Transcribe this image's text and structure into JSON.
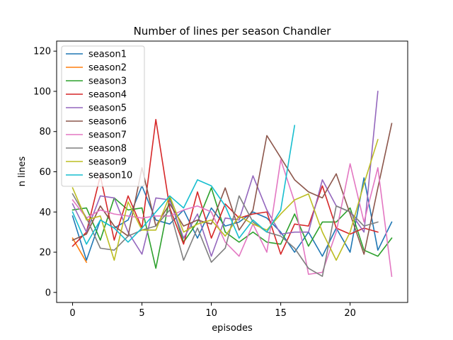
{
  "chart_data": {
    "type": "line",
    "title": "Number of lines per season Chandler",
    "xlabel": "episodes",
    "ylabel": "n lines",
    "xlim": [
      -1.15,
      24.15
    ],
    "ylim": [
      -5,
      125
    ],
    "x_ticks": [
      0,
      5,
      10,
      15,
      20
    ],
    "y_ticks": [
      0,
      20,
      40,
      60,
      80,
      100,
      120
    ],
    "grid": false,
    "legend_position": "top-left",
    "series": [
      {
        "name": "season1",
        "color": "#1f77b4",
        "x": [
          0,
          1,
          2,
          3,
          4,
          5,
          6,
          7,
          8,
          9,
          10,
          11,
          12,
          13,
          14,
          15,
          16,
          17,
          18,
          19,
          20,
          21,
          22,
          23
        ],
        "y": [
          38,
          16,
          36,
          32,
          36,
          53,
          36,
          34,
          41,
          27,
          42,
          33,
          35,
          40,
          37,
          30,
          20,
          30,
          18,
          32,
          20,
          57,
          21,
          35
        ]
      },
      {
        "name": "season2",
        "color": "#ff7f0e",
        "x": [
          0,
          1
        ],
        "y": [
          27,
          15
        ]
      },
      {
        "name": "season3",
        "color": "#2ca02c",
        "x": [
          0,
          1,
          2,
          3,
          4,
          5,
          6,
          7,
          8,
          9,
          10,
          11,
          12,
          13,
          14,
          15,
          16,
          17,
          18,
          19,
          20,
          21,
          22,
          23
        ],
        "y": [
          41,
          42,
          26,
          47,
          41,
          42,
          12,
          47,
          25,
          35,
          52,
          30,
          25,
          30,
          25,
          24,
          39,
          23,
          35,
          35,
          42,
          21,
          18,
          27
        ]
      },
      {
        "name": "season4",
        "color": "#d62728",
        "x": [
          0,
          1,
          2,
          3,
          4,
          5,
          6,
          7,
          8,
          9,
          10,
          11,
          12,
          13,
          14,
          15,
          16,
          17,
          18,
          19,
          20,
          21,
          22
        ],
        "y": [
          23,
          30,
          58,
          26,
          48,
          32,
          86,
          42,
          24,
          50,
          27,
          44,
          37,
          39,
          40,
          19,
          34,
          33,
          53,
          32,
          29,
          32,
          30
        ]
      },
      {
        "name": "season5",
        "color": "#9467bd",
        "x": [
          0,
          1,
          2,
          3,
          4,
          5,
          6,
          7,
          8,
          9,
          10,
          11,
          12,
          13,
          14,
          15,
          16,
          17,
          18,
          19,
          20,
          21,
          22
        ],
        "y": [
          44,
          30,
          48,
          47,
          30,
          19,
          47,
          46,
          27,
          39,
          18,
          37,
          36,
          58,
          41,
          29,
          30,
          30,
          56,
          43,
          40,
          30,
          100
        ]
      },
      {
        "name": "season6",
        "color": "#8c564b",
        "x": [
          0,
          1,
          2,
          3,
          4,
          5,
          6,
          7,
          8,
          9,
          10,
          11,
          12,
          13,
          14,
          16,
          17,
          18,
          19,
          20,
          21,
          22,
          23
        ],
        "y": [
          26,
          29,
          43,
          33,
          28,
          62,
          33,
          44,
          33,
          36,
          34,
          52,
          31,
          41,
          78,
          56,
          50,
          47,
          59,
          39,
          19,
          52,
          84
        ]
      },
      {
        "name": "season7",
        "color": "#e377c2",
        "x": [
          0,
          1,
          2,
          3,
          4,
          5,
          6,
          7,
          8,
          9,
          10,
          11,
          12,
          13,
          14,
          15,
          16,
          17,
          18,
          19,
          20,
          21,
          22,
          23
        ],
        "y": [
          46,
          37,
          41,
          39,
          38,
          37,
          38,
          38,
          41,
          43,
          40,
          25,
          18,
          34,
          20,
          66,
          45,
          9,
          10,
          30,
          64,
          35,
          62,
          8
        ]
      },
      {
        "name": "season8",
        "color": "#7f7f7f",
        "x": [
          0,
          1,
          2,
          3,
          4,
          5,
          6,
          7,
          8,
          9,
          10,
          11,
          12,
          13,
          14,
          15,
          16,
          17,
          18,
          19,
          20,
          21,
          22
        ],
        "y": [
          49,
          37,
          22,
          21,
          28,
          31,
          33,
          41,
          16,
          32,
          15,
          22,
          48,
          35,
          30,
          28,
          22,
          12,
          8,
          43,
          40,
          33,
          35
        ]
      },
      {
        "name": "season9",
        "color": "#bcbd22",
        "x": [
          0,
          1,
          2,
          3,
          4,
          5,
          6,
          7,
          8,
          9,
          10,
          11,
          12,
          13,
          14,
          15,
          16,
          17,
          18,
          19,
          20,
          21,
          22
        ],
        "y": [
          52,
          36,
          38,
          16,
          45,
          31,
          31,
          48,
          30,
          34,
          36,
          28,
          38,
          34,
          31,
          39,
          46,
          49,
          30,
          16,
          30,
          54,
          76
        ]
      },
      {
        "name": "season10",
        "color": "#17becf",
        "x": [
          0,
          1,
          2,
          3,
          4,
          5,
          6,
          7,
          8,
          9,
          10,
          11,
          12,
          13,
          14,
          15,
          16
        ],
        "y": [
          40,
          24,
          36,
          32,
          25,
          32,
          40,
          48,
          42,
          56,
          53,
          43,
          27,
          36,
          30,
          41,
          83
        ]
      }
    ]
  }
}
